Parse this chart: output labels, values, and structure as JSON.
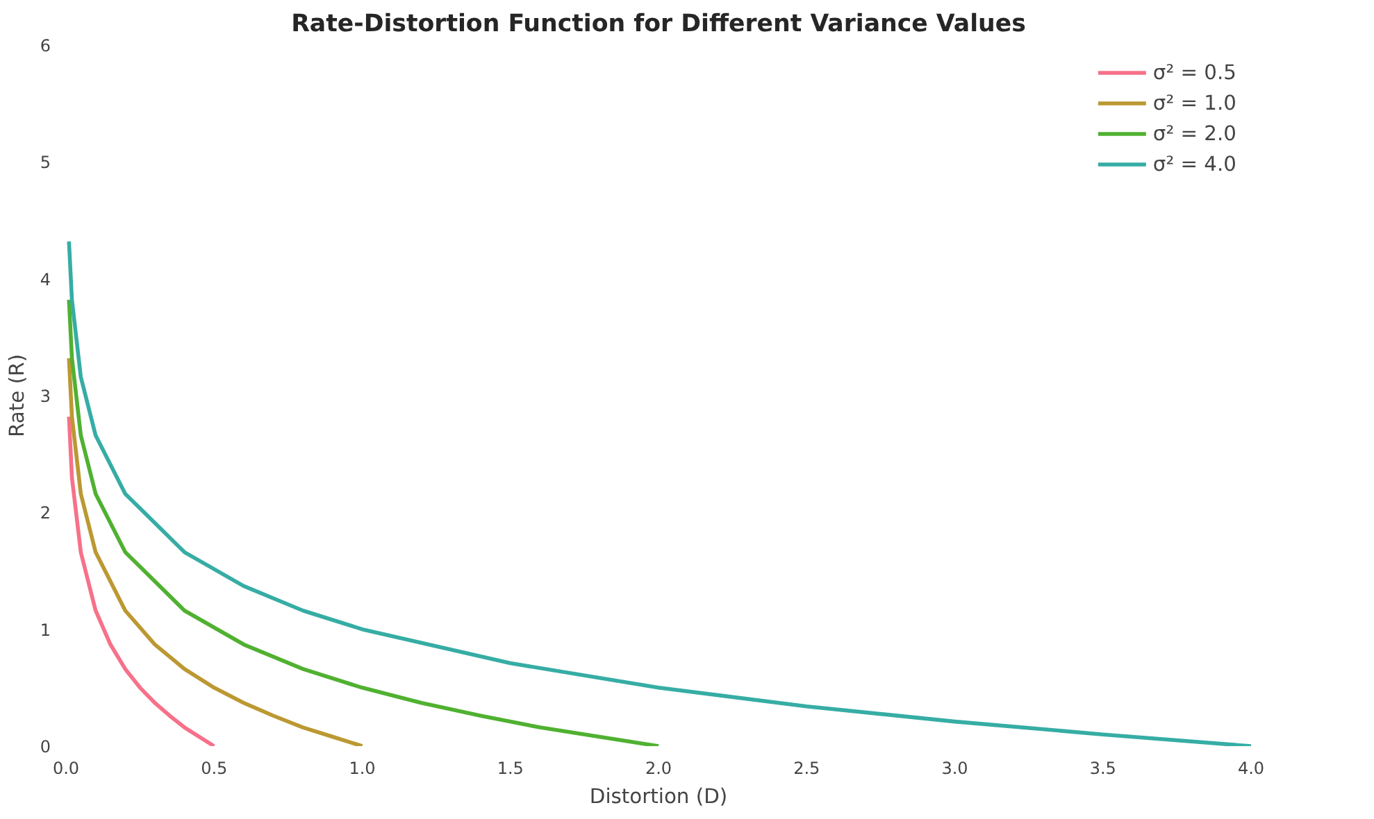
{
  "chart_data": {
    "type": "line",
    "title": "Rate-Distortion Function for Different Variance Values",
    "xlabel": "Distortion (D)",
    "ylabel": "Rate (R)",
    "xlim": [
      0,
      4
    ],
    "ylim": [
      0,
      6
    ],
    "xticks": [
      {
        "value": 0,
        "label": "0.0"
      },
      0.5,
      {
        "value": 1,
        "label": "1.0"
      },
      1.5,
      {
        "value": 2,
        "label": "2.0"
      },
      2.5,
      {
        "value": 3,
        "label": "3.0"
      },
      3.5,
      {
        "value": 4,
        "label": "4.0"
      }
    ],
    "yticks": [
      0,
      1,
      2,
      3,
      4,
      5,
      6
    ],
    "grid": false,
    "legend": "top right",
    "line_style": "solid",
    "marker": "none",
    "series": [
      {
        "name": "σ² = 0.5",
        "color": "#f77189",
        "x": [
          0.01,
          0.02,
          0.05,
          0.1,
          0.15,
          0.2,
          0.25,
          0.3,
          0.35,
          0.4,
          0.45,
          0.5
        ],
        "values": [
          2.82,
          2.3,
          1.66,
          1.16,
          0.87,
          0.66,
          0.5,
          0.37,
          0.26,
          0.16,
          0.08,
          0
        ]
      },
      {
        "name": "σ² = 1.0",
        "color": "#bb9832",
        "x": [
          0.01,
          0.02,
          0.05,
          0.1,
          0.2,
          0.3,
          0.4,
          0.5,
          0.6,
          0.7,
          0.8,
          0.9,
          1.0
        ],
        "values": [
          3.32,
          2.82,
          2.16,
          1.66,
          1.16,
          0.87,
          0.66,
          0.5,
          0.37,
          0.26,
          0.16,
          0.08,
          0
        ]
      },
      {
        "name": "σ² = 2.0",
        "color": "#50b131",
        "x": [
          0.01,
          0.02,
          0.05,
          0.1,
          0.2,
          0.4,
          0.6,
          0.8,
          1.0,
          1.2,
          1.4,
          1.6,
          1.8,
          2.0
        ],
        "values": [
          3.82,
          3.32,
          2.66,
          2.16,
          1.66,
          1.16,
          0.87,
          0.66,
          0.5,
          0.37,
          0.26,
          0.16,
          0.08,
          0
        ]
      },
      {
        "name": "σ² = 4.0",
        "color": "#36ada4",
        "x": [
          0.01,
          0.02,
          0.05,
          0.1,
          0.2,
          0.4,
          0.6,
          0.8,
          1.0,
          1.5,
          2.0,
          2.5,
          3.0,
          3.5,
          4.0
        ],
        "values": [
          4.32,
          3.82,
          3.16,
          2.66,
          2.16,
          1.66,
          1.37,
          1.16,
          1.0,
          0.71,
          0.5,
          0.34,
          0.21,
          0.1,
          0
        ]
      }
    ]
  }
}
